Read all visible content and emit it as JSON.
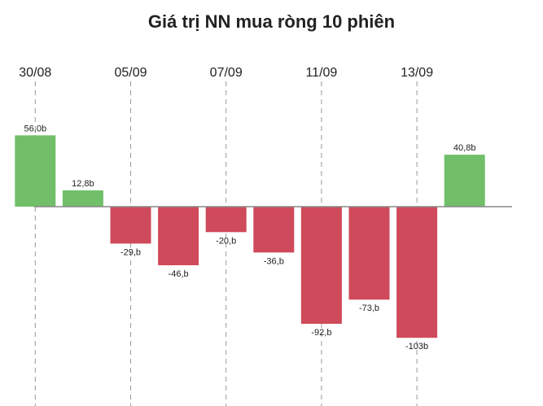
{
  "chart_data": {
    "type": "bar",
    "title": "Giá trị NN mua ròng 10 phiên",
    "categories": [
      "30/08",
      "",
      "05/09",
      "",
      "07/09",
      "",
      "11/09",
      "",
      "13/09",
      ""
    ],
    "values": [
      56.0,
      12.8,
      -29,
      -46,
      -20,
      -36,
      -92,
      -73,
      -103,
      40.8
    ],
    "data_labels": [
      "56,0b",
      "12,8b",
      "-29,b",
      "-46,b",
      "-20,b",
      "-36,b",
      "-92,b",
      "-73,b",
      "-103b",
      "40,8b"
    ],
    "xlabel": "",
    "ylabel": "",
    "ylim": [
      -103,
      56
    ],
    "grid": "vertical dashed lines at labeled dates",
    "legend": "none",
    "colors": {
      "positive": "#71bf69",
      "negative": "#cf4a5a",
      "axis": "#888888",
      "grid": "#9a9a9a"
    }
  }
}
